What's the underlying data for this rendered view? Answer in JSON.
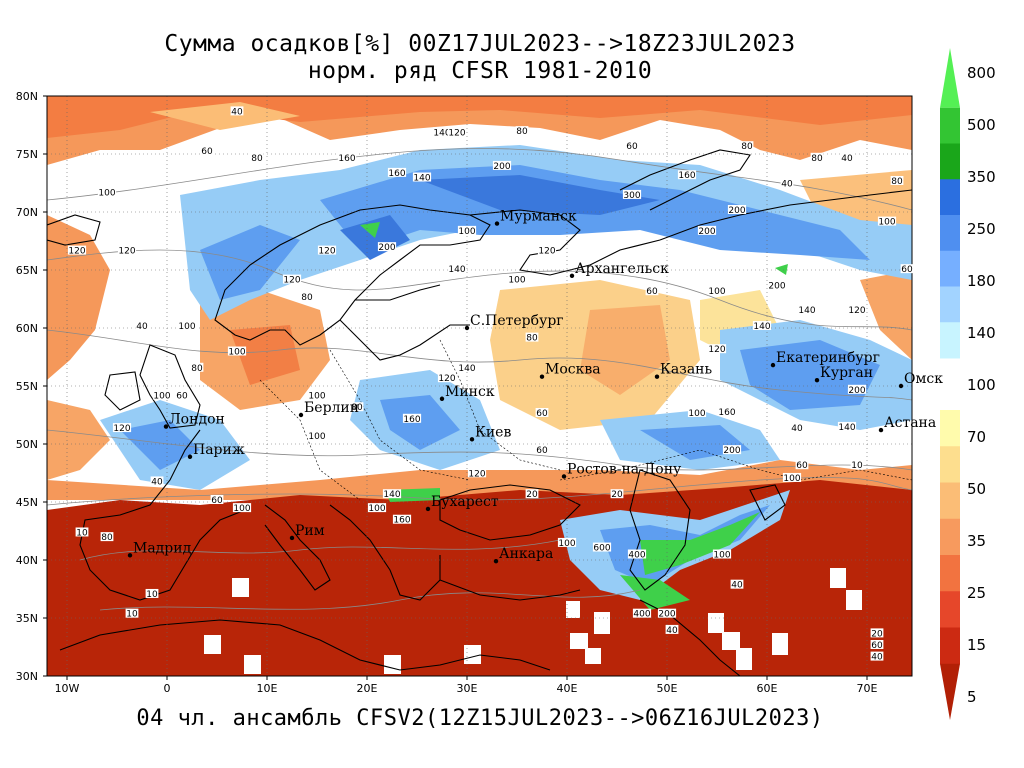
{
  "header": {
    "title_line1": "Сумма осадков[%] 00Z17JUL2023-->18Z23JUL2023",
    "title_line2": "норм. ряд CFSR 1981-2010",
    "subtitle": "04 чл. ансамбль CFSV2(12Z15JUL2023-->06Z16JUL2023)"
  },
  "map": {
    "lat_labels": [
      "80N",
      "75N",
      "70N",
      "65N",
      "60N",
      "55N",
      "50N",
      "45N",
      "40N",
      "35N",
      "30N"
    ],
    "lon_labels": [
      "10W",
      "0",
      "10E",
      "20E",
      "30E",
      "40E",
      "50E",
      "60E",
      "70E"
    ],
    "cities": [
      {
        "name": "Мурманск",
        "lon": 33,
        "lat": 69
      },
      {
        "name": "Архангельск",
        "lon": 40.5,
        "lat": 64.5
      },
      {
        "name": "С.Петербург",
        "lon": 30,
        "lat": 60
      },
      {
        "name": "Москва",
        "lon": 37.5,
        "lat": 55.8
      },
      {
        "name": "Казань",
        "lon": 49,
        "lat": 55.8
      },
      {
        "name": "Екатеринбург",
        "lon": 60.6,
        "lat": 56.8
      },
      {
        "name": "Курган",
        "lon": 65,
        "lat": 55.5
      },
      {
        "name": "Омск",
        "lon": 73.4,
        "lat": 55
      },
      {
        "name": "Астана",
        "lon": 71.4,
        "lat": 51.2
      },
      {
        "name": "Минск",
        "lon": 27.5,
        "lat": 53.9
      },
      {
        "name": "Берлин",
        "lon": 13.4,
        "lat": 52.5
      },
      {
        "name": "Лондон",
        "lon": -0.1,
        "lat": 51.5
      },
      {
        "name": "Париж",
        "lon": 2.3,
        "lat": 48.9
      },
      {
        "name": "Киев",
        "lon": 30.5,
        "lat": 50.4
      },
      {
        "name": "Ростов-на-Дону",
        "lon": 39.7,
        "lat": 47.2
      },
      {
        "name": "Бухарест",
        "lon": 26.1,
        "lat": 44.4
      },
      {
        "name": "Рим",
        "lon": 12.5,
        "lat": 41.9
      },
      {
        "name": "Мадрид",
        "lon": -3.7,
        "lat": 40.4
      },
      {
        "name": "Анкара",
        "lon": 32.9,
        "lat": 39.9
      }
    ],
    "contour_labels": [
      {
        "t": "40",
        "lon": 7,
        "lat": 78.5
      },
      {
        "t": "140",
        "lon": 27.5,
        "lat": 76.7
      },
      {
        "t": "120",
        "lon": 29,
        "lat": 76.7
      },
      {
        "t": "80",
        "lon": 35.5,
        "lat": 76.8
      },
      {
        "t": "60",
        "lon": 46.5,
        "lat": 75.5
      },
      {
        "t": "80",
        "lon": 58,
        "lat": 75.5
      },
      {
        "t": "80",
        "lon": 65,
        "lat": 74.5
      },
      {
        "t": "40",
        "lon": 68,
        "lat": 74.5
      },
      {
        "t": "60",
        "lon": 4,
        "lat": 75.1
      },
      {
        "t": "80",
        "lon": 9,
        "lat": 74.5
      },
      {
        "t": "160",
        "lon": 18,
        "lat": 74.5
      },
      {
        "t": "200",
        "lon": 33.5,
        "lat": 73.8
      },
      {
        "t": "160",
        "lon": 23,
        "lat": 73.2
      },
      {
        "t": "140",
        "lon": 25.5,
        "lat": 72.8
      },
      {
        "t": "160",
        "lon": 52,
        "lat": 73
      },
      {
        "t": "300",
        "lon": 46.5,
        "lat": 71.3
      },
      {
        "t": "200",
        "lon": 57,
        "lat": 70
      },
      {
        "t": "40",
        "lon": 62,
        "lat": 72.3
      },
      {
        "t": "100",
        "lon": -6,
        "lat": 71.5
      },
      {
        "t": "80",
        "lon": 73,
        "lat": 72.5
      },
      {
        "t": "100",
        "lon": 72,
        "lat": 69
      },
      {
        "t": "200",
        "lon": 54,
        "lat": 68.2
      },
      {
        "t": "120",
        "lon": -9,
        "lat": 66.5
      },
      {
        "t": "120",
        "lon": -4,
        "lat": 66.5
      },
      {
        "t": "120",
        "lon": 16,
        "lat": 66.5
      },
      {
        "t": "200",
        "lon": 22,
        "lat": 66.8
      },
      {
        "t": "100",
        "lon": 30,
        "lat": 68.2
      },
      {
        "t": "120",
        "lon": 38,
        "lat": 66.5
      },
      {
        "t": "140",
        "lon": 29,
        "lat": 64.9
      },
      {
        "t": "100",
        "lon": 35,
        "lat": 64
      },
      {
        "t": "200",
        "lon": 61,
        "lat": 63.5
      },
      {
        "t": "60",
        "lon": 74,
        "lat": 64.9
      },
      {
        "t": "80",
        "lon": 14,
        "lat": 62.5
      },
      {
        "t": "120",
        "lon": 12.5,
        "lat": 64
      },
      {
        "t": "60",
        "lon": 48.5,
        "lat": 63
      },
      {
        "t": "100",
        "lon": 55,
        "lat": 63
      },
      {
        "t": "140",
        "lon": 64,
        "lat": 61.4
      },
      {
        "t": "120",
        "lon": 69,
        "lat": 61.4
      },
      {
        "t": "140",
        "lon": 59.5,
        "lat": 60
      },
      {
        "t": "100",
        "lon": 2,
        "lat": 60
      },
      {
        "t": "40",
        "lon": -2.5,
        "lat": 60
      },
      {
        "t": "80",
        "lon": 36.5,
        "lat": 59
      },
      {
        "t": "120",
        "lon": 55,
        "lat": 58
      },
      {
        "t": "100",
        "lon": 7,
        "lat": 57.8
      },
      {
        "t": "60",
        "lon": 1.5,
        "lat": 54
      },
      {
        "t": "100",
        "lon": -0.5,
        "lat": 54
      },
      {
        "t": "80",
        "lon": 3,
        "lat": 56.4
      },
      {
        "t": "140",
        "lon": 30,
        "lat": 56.4
      },
      {
        "t": "120",
        "lon": 28,
        "lat": 55.5
      },
      {
        "t": "100",
        "lon": 15,
        "lat": 54
      },
      {
        "t": "160",
        "lon": 24.5,
        "lat": 52
      },
      {
        "t": "80",
        "lon": 19,
        "lat": 53
      },
      {
        "t": "60",
        "lon": 37.5,
        "lat": 52.5
      },
      {
        "t": "100",
        "lon": 53,
        "lat": 52.5
      },
      {
        "t": "160",
        "lon": 56,
        "lat": 52.6
      },
      {
        "t": "200",
        "lon": 69,
        "lat": 54.5
      },
      {
        "t": "140",
        "lon": 68,
        "lat": 51.3
      },
      {
        "t": "40",
        "lon": 63,
        "lat": 51.2
      },
      {
        "t": "120",
        "lon": -4.5,
        "lat": 51.2
      },
      {
        "t": "100",
        "lon": 15,
        "lat": 50.5
      },
      {
        "t": "60",
        "lon": 37.5,
        "lat": 49.3
      },
      {
        "t": "200",
        "lon": 56.5,
        "lat": 49.3
      },
      {
        "t": "60",
        "lon": 63.5,
        "lat": 48
      },
      {
        "t": "10",
        "lon": 69,
        "lat": 48
      },
      {
        "t": "100",
        "lon": 62.5,
        "lat": 46.9
      },
      {
        "t": "120",
        "lon": 31,
        "lat": 47.3
      },
      {
        "t": "20",
        "lon": 36.5,
        "lat": 45.5
      },
      {
        "t": "20",
        "lon": 45,
        "lat": 45.5
      },
      {
        "t": "40",
        "lon": -1,
        "lat": 46.6
      },
      {
        "t": "60",
        "lon": 5,
        "lat": 45
      },
      {
        "t": "140",
        "lon": 22.5,
        "lat": 45.5
      },
      {
        "t": "100",
        "lon": 21,
        "lat": 44.3
      },
      {
        "t": "160",
        "lon": 23.5,
        "lat": 43.3
      },
      {
        "t": "100",
        "lon": 7.5,
        "lat": 44.3
      },
      {
        "t": "80",
        "lon": -6,
        "lat": 41.8
      },
      {
        "t": "10",
        "lon": -8.5,
        "lat": 42.2
      },
      {
        "t": "100",
        "lon": 40,
        "lat": 41.3
      },
      {
        "t": "600",
        "lon": 43.5,
        "lat": 40.9
      },
      {
        "t": "400",
        "lon": 47,
        "lat": 40.3
      },
      {
        "t": "100",
        "lon": 55.5,
        "lat": 40.3
      },
      {
        "t": "40",
        "lon": 57,
        "lat": 37.7
      },
      {
        "t": "10",
        "lon": -1.5,
        "lat": 36.9
      },
      {
        "t": "10",
        "lon": -3.5,
        "lat": 35.2
      },
      {
        "t": "400",
        "lon": 47.5,
        "lat": 35.2
      },
      {
        "t": "200",
        "lon": 50,
        "lat": 35.2
      },
      {
        "t": "40",
        "lon": 50.5,
        "lat": 33.8
      },
      {
        "t": "20",
        "lon": 71,
        "lat": 33.5
      },
      {
        "t": "60",
        "lon": 71,
        "lat": 32.5
      },
      {
        "t": "40",
        "lon": 71,
        "lat": 31.5
      }
    ]
  },
  "legend": {
    "labels": [
      "800",
      "500",
      "350",
      "250",
      "180",
      "140",
      "100",
      "70",
      "50",
      "35",
      "25",
      "15",
      "5"
    ],
    "colors_top": [
      "#54f054",
      "#33c533",
      "#1aa61a",
      "#2b6fe0",
      "#4f8ff0",
      "#76afff",
      "#a2d3ff",
      "#c8f4ff"
    ],
    "colors_bottom": [
      "#fffbac",
      "#fdde8e",
      "#fbbd76",
      "#f79a5e",
      "#f27340",
      "#e6472a",
      "#cc2a12",
      "#b22006"
    ]
  },
  "palette": {
    "deep_red": "#b82508",
    "orange": "#f2783e",
    "light_orange": "#f9b070",
    "pale_yellow": "#fce39a",
    "white": "#ffffff",
    "pale_blue": "#c4ecff",
    "light_blue": "#96ccf6",
    "mid_blue": "#5e9ef0",
    "blue": "#3a78dc",
    "green": "#3fd04a"
  }
}
